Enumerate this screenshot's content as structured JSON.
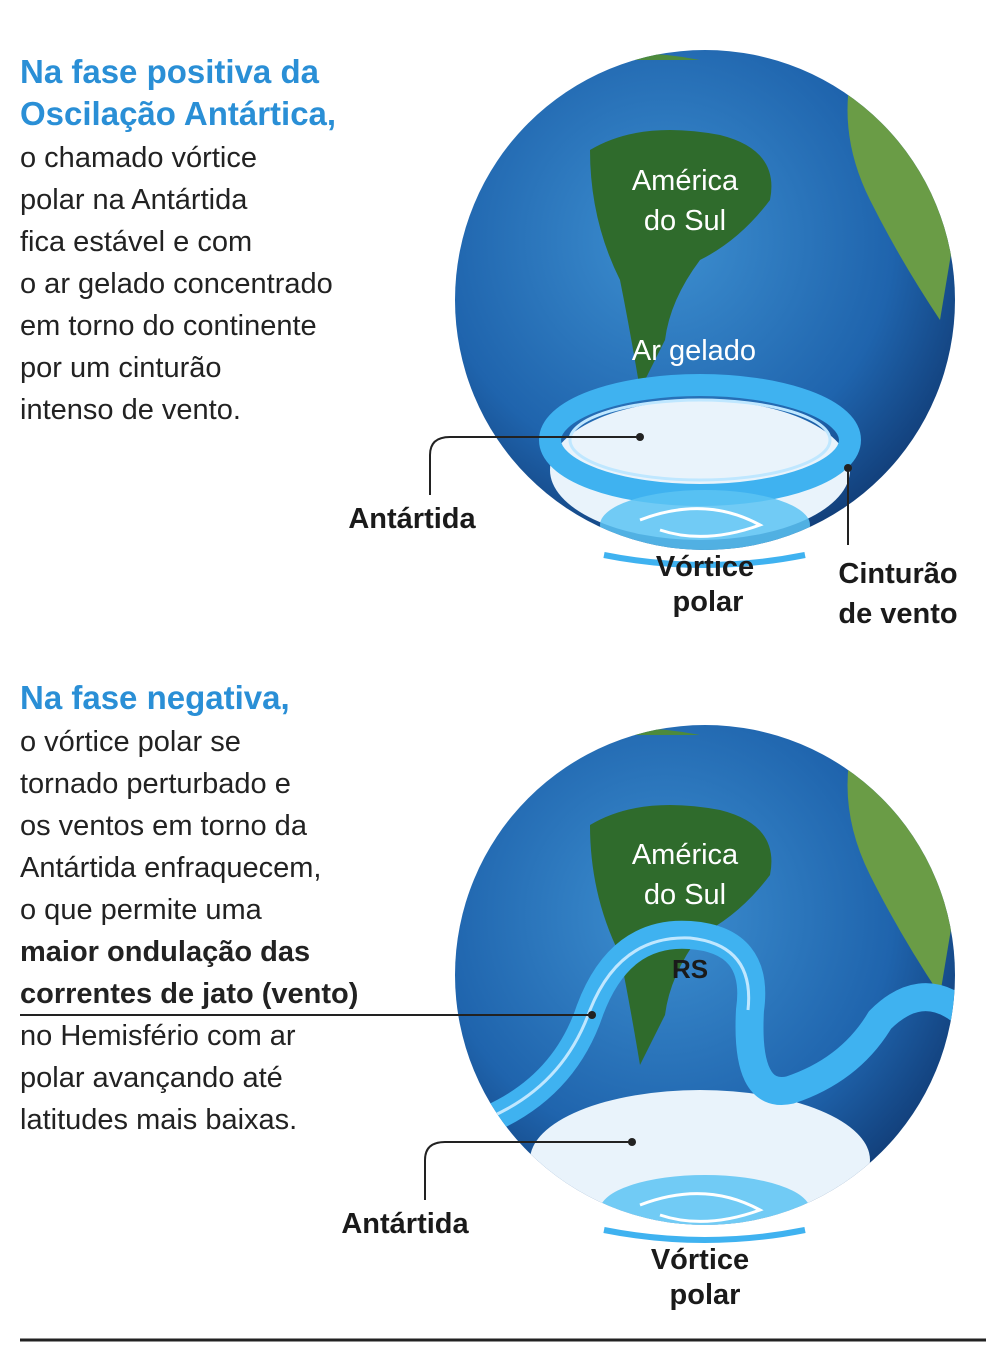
{
  "panels": [
    {
      "heading": [
        "Na fase positiva da",
        "Oscilação Antártica,"
      ],
      "body": [
        {
          "text": "o chamado vórtice"
        },
        {
          "text": "polar na Antártida"
        },
        {
          "text": "fica estável e com"
        },
        {
          "text": "o ar gelado concentrado"
        },
        {
          "text": "em torno do continente"
        },
        {
          "text": "por um cinturão"
        },
        {
          "text": "intenso de vento."
        }
      ],
      "globe_labels": {
        "continent": [
          "América",
          "do Sul"
        ],
        "cold_air": "Ar gelado",
        "antarctica": "Antártida",
        "vortex": [
          "Vórtice",
          "polar"
        ],
        "belt": [
          "Cinturão",
          "de vento"
        ]
      }
    },
    {
      "heading": [
        "Na fase negativa,"
      ],
      "body": [
        {
          "text": "o vórtice polar se"
        },
        {
          "text": "tornado perturbado e"
        },
        {
          "text": "os ventos em torno da"
        },
        {
          "text": "Antártida enfraquecem,"
        },
        {
          "text": "o que permite uma"
        },
        {
          "text": "maior ondulação das",
          "bold": true
        },
        {
          "text": "correntes de jato (vento)",
          "bold": true
        },
        {
          "text": "no Hemisfério com ar"
        },
        {
          "text": "polar avançando até"
        },
        {
          "text": "latitudes mais baixas."
        }
      ],
      "globe_labels": {
        "continent": [
          "América",
          "do Sul"
        ],
        "state": "RS",
        "antarctica": "Antártida",
        "vortex": [
          "Vórtice",
          "polar"
        ]
      }
    }
  ]
}
